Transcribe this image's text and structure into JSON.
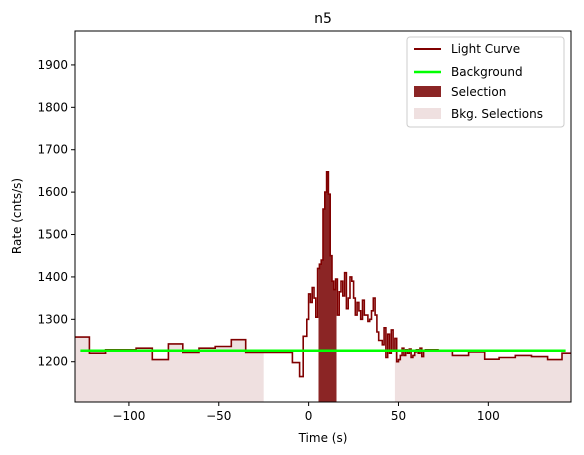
{
  "chart_data": {
    "type": "line",
    "title": "n5",
    "xlabel": "Time (s)",
    "ylabel": "Rate (cnts/s)",
    "xlim": [
      -130,
      146
    ],
    "ylim": [
      1105,
      1980
    ],
    "x_ticks": [
      -100,
      -50,
      0,
      50,
      100
    ],
    "x_tick_labels": [
      "−100",
      "−50",
      "0",
      "50",
      "100"
    ],
    "y_ticks": [
      1200,
      1300,
      1400,
      1500,
      1600,
      1700,
      1800,
      1900
    ],
    "y_tick_labels": [
      "1200",
      "1300",
      "1400",
      "1500",
      "1600",
      "1700",
      "1800",
      "1900"
    ],
    "legend_position": "top-right",
    "series": [
      {
        "name": "Light Curve",
        "kind": "step",
        "color": "#800000",
        "x": [
          -130,
          -122,
          -113,
          -104,
          -96,
          -87,
          -78,
          -70,
          -61,
          -52,
          -43,
          -35,
          -26,
          -17,
          -9,
          -5,
          -3,
          -1,
          0,
          1,
          2,
          3,
          4,
          5,
          6,
          7,
          8,
          9,
          10,
          11,
          12,
          13,
          14,
          15,
          16,
          17,
          18,
          19,
          20,
          21,
          22,
          23,
          24,
          25,
          26,
          27,
          28,
          29,
          30,
          31,
          32,
          33,
          34,
          35,
          36,
          37,
          38,
          39,
          40,
          41,
          42,
          43,
          44,
          45,
          46,
          47,
          48,
          49,
          50,
          51,
          52,
          53,
          54,
          55,
          56,
          57,
          58,
          59,
          60,
          61,
          62,
          63,
          64,
          65,
          72,
          80,
          89,
          98,
          106,
          115,
          124,
          133,
          141,
          146
        ],
        "y": [
          1258,
          1220,
          1228,
          1228,
          1232,
          1205,
          1242,
          1222,
          1232,
          1236,
          1252,
          1222,
          1222,
          1222,
          1198,
          1165,
          1260,
          1300,
          1360,
          1340,
          1375,
          1350,
          1305,
          1420,
          1430,
          1440,
          1560,
          1600,
          1648,
          1595,
          1450,
          1390,
          1370,
          1395,
          1310,
          1365,
          1390,
          1355,
          1410,
          1325,
          1350,
          1400,
          1390,
          1350,
          1310,
          1340,
          1320,
          1300,
          1345,
          1310,
          1310,
          1295,
          1300,
          1320,
          1350,
          1310,
          1270,
          1250,
          1250,
          1240,
          1280,
          1210,
          1265,
          1220,
          1275,
          1225,
          1255,
          1200,
          1205,
          1215,
          1232,
          1215,
          1228,
          1220,
          1230,
          1210,
          1215,
          1223,
          1228,
          1220,
          1232,
          1212,
          1225,
          1228,
          1225,
          1215,
          1223,
          1206,
          1210,
          1215,
          1212,
          1205,
          1220,
          1220
        ]
      },
      {
        "name": "Background",
        "kind": "line",
        "color": "#00ff00",
        "x": [
          -127,
          143
        ],
        "y": [
          1226,
          1226
        ]
      }
    ],
    "selections": [
      {
        "name": "Selection",
        "color": "#8b2525",
        "ranges": [
          [
            5.5,
            15.5
          ]
        ]
      },
      {
        "name": "Bkg. Selections",
        "color": "#efe0e0",
        "ranges": [
          [
            -130,
            -25
          ],
          [
            48,
            146
          ]
        ]
      }
    ]
  }
}
